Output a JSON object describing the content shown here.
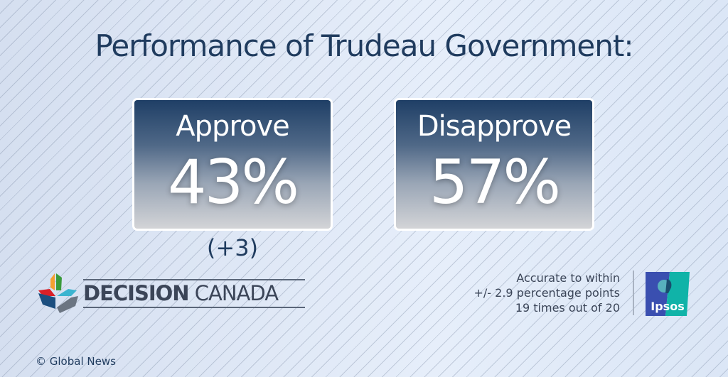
{
  "title": "Performance of Trudeau Government:",
  "approve": {
    "label": "Approve",
    "value": "43%",
    "change": "(+3)"
  },
  "disapprove": {
    "label": "Disapprove",
    "value": "57%"
  },
  "brand": {
    "bold": "DECISION",
    "light": "CANADA"
  },
  "accuracy": [
    "Accurate to within",
    "+/- 2.9 percentage points",
    "19 times out of 20"
  ],
  "ipsos": "Ipsos",
  "copyright": "© Global News",
  "colors": {
    "title": "#1f3b5e",
    "box_top": "#1f3f66",
    "box_bottom": "#d3d4d7",
    "ipsos_blue": "#3a4fb0",
    "ipsos_teal": "#10b3a8"
  }
}
